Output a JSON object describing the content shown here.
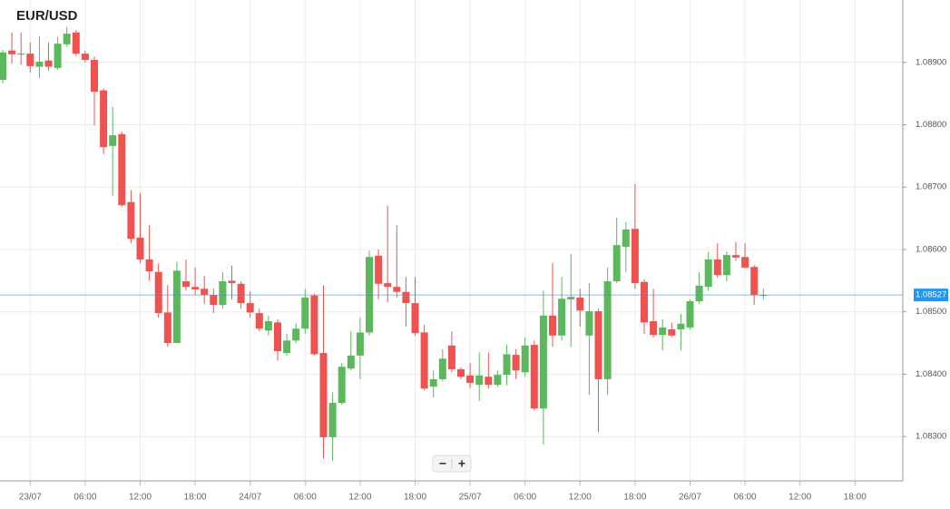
{
  "chart_data": {
    "type": "candlestick",
    "title": "EUR/USD",
    "categories": [
      null,
      null,
      null,
      "23/07",
      null,
      null,
      null,
      null,
      null,
      "06:00",
      null,
      null,
      null,
      null,
      null,
      "12:00",
      null,
      null,
      null,
      null,
      null,
      "18:00",
      null,
      null,
      null,
      null,
      null,
      "24/07",
      null,
      null,
      null,
      null,
      null,
      "06:00",
      null,
      null,
      null,
      null,
      null,
      "12:00",
      null,
      null,
      null,
      null,
      null,
      "18:00",
      null,
      null,
      null,
      null,
      null,
      "25/07",
      null,
      null,
      null,
      null,
      null,
      "06:00",
      null,
      null,
      null,
      null,
      null,
      "12:00",
      null,
      null,
      null,
      null,
      null,
      "18:00",
      null,
      null,
      null,
      null,
      null,
      "26/07",
      null,
      null,
      null,
      null,
      null,
      "06:00",
      null,
      null,
      null,
      null,
      null,
      "12:00",
      null,
      null,
      null,
      null,
      null,
      "18:00",
      null,
      null,
      null
    ],
    "open": [
      1.08872,
      1.08919,
      1.08914,
      1.08914,
      1.08893,
      1.08903,
      1.08891,
      1.08929,
      1.08948,
      1.08914,
      1.08904,
      1.08855,
      1.08766,
      1.08785,
      1.08676,
      1.08619,
      1.08584,
      1.08564,
      1.08499,
      1.0845,
      1.08549,
      1.0854,
      1.08537,
      1.08527,
      1.08511,
      1.0855,
      1.08545,
      1.08514,
      1.08498,
      1.0847,
      1.08483,
      1.08434,
      1.08454,
      1.08473,
      1.08526,
      1.08434,
      1.08299,
      1.08354,
      1.08409,
      1.0843,
      1.08467,
      1.0859,
      1.08546,
      1.0854,
      1.08532,
      1.08514,
      1.08467,
      1.0838,
      1.08392,
      1.08446,
      1.08408,
      1.08398,
      1.08383,
      1.08396,
      1.08383,
      1.08399,
      1.08431,
      1.08403,
      1.08447,
      1.08345,
      1.08494,
      1.08462,
      1.0852,
      1.08523,
      1.08462,
      1.08501,
      1.08392,
      1.08549,
      1.08604,
      1.08633,
      1.08548,
      1.08485,
      1.08463,
      1.08472,
      1.08472,
      1.08475,
      1.08517,
      1.0854,
      1.08584,
      1.08559,
      1.08591,
      1.08588,
      1.08572,
      1.08527,
      null,
      null,
      null,
      null,
      null,
      null,
      null,
      null,
      null,
      null,
      null,
      null,
      null
    ],
    "high": [
      1.0892,
      1.08948,
      1.08948,
      1.08932,
      1.08942,
      1.08932,
      1.08941,
      1.08957,
      1.08952,
      1.08919,
      1.08909,
      1.08858,
      1.08829,
      1.08789,
      1.08695,
      1.0869,
      1.08639,
      1.08578,
      1.08543,
      1.0858,
      1.08584,
      1.08571,
      1.08558,
      1.08537,
      1.08564,
      1.08574,
      1.08549,
      1.08533,
      1.08505,
      1.08494,
      1.08488,
      1.08465,
      1.08482,
      1.08537,
      1.08529,
      1.08542,
      1.08371,
      1.08418,
      1.08469,
      1.08491,
      1.08598,
      1.086,
      1.0867,
      1.08639,
      1.08556,
      1.08556,
      1.08479,
      1.08406,
      1.0844,
      1.08469,
      1.08411,
      1.08418,
      1.08435,
      1.08435,
      1.08406,
      1.08447,
      1.0844,
      1.08459,
      1.08454,
      1.08534,
      1.08578,
      1.08556,
      1.08593,
      1.08537,
      1.08546,
      1.08505,
      1.08571,
      1.08651,
      1.08644,
      1.08705,
      1.08552,
      1.08537,
      1.08488,
      1.08483,
      1.08497,
      1.0852,
      1.08564,
      1.08596,
      1.0861,
      1.08597,
      1.08612,
      1.0861,
      1.08575,
      1.08537,
      null,
      null,
      null,
      null,
      null,
      null,
      null,
      null,
      null,
      null,
      null,
      null,
      null
    ],
    "low": [
      1.08866,
      1.08898,
      1.08896,
      1.08884,
      1.08875,
      1.08887,
      1.08888,
      1.08925,
      1.0891,
      1.089,
      1.08799,
      1.08753,
      1.08686,
      1.08668,
      1.0861,
      1.08578,
      1.0855,
      1.08491,
      1.08444,
      1.0845,
      1.08534,
      1.08527,
      1.08513,
      1.08498,
      1.08505,
      1.0852,
      1.08505,
      1.08491,
      1.08469,
      1.08462,
      1.08422,
      1.0843,
      1.0845,
      1.08465,
      1.0843,
      1.08265,
      1.08261,
      1.08351,
      1.08406,
      1.08392,
      1.08462,
      1.0852,
      1.08515,
      1.08523,
      1.08476,
      1.08462,
      1.08374,
      1.08363,
      1.08389,
      1.08403,
      1.08392,
      1.08377,
      1.08357,
      1.08377,
      1.0838,
      1.08382,
      1.08392,
      1.08396,
      1.08342,
      1.08287,
      1.08444,
      1.08454,
      1.08444,
      1.08476,
      1.08367,
      1.08307,
      1.08367,
      1.08546,
      1.08564,
      1.08537,
      1.08465,
      1.08459,
      1.08438,
      1.08459,
      1.08438,
      1.08472,
      1.08513,
      1.08534,
      1.08555,
      1.08549,
      1.08582,
      1.08569,
      1.08511,
      1.0852,
      null,
      null,
      null,
      null,
      null,
      null,
      null,
      null,
      null,
      null,
      null,
      null,
      null
    ],
    "close": [
      1.08916,
      1.08913,
      1.08913,
      1.08894,
      1.08901,
      1.08893,
      1.0893,
      1.08946,
      1.08914,
      1.08904,
      1.08853,
      1.08764,
      1.08783,
      1.08671,
      1.08617,
      1.08584,
      1.08565,
      1.08498,
      1.0845,
      1.08566,
      1.0854,
      1.08536,
      1.08527,
      1.08511,
      1.08549,
      1.08546,
      1.08514,
      1.08499,
      1.08473,
      1.08485,
      1.08437,
      1.08454,
      1.08473,
      1.08523,
      1.08432,
      1.08299,
      1.08354,
      1.08412,
      1.0843,
      1.08467,
      1.08588,
      1.08545,
      1.0854,
      1.08532,
      1.08514,
      1.08466,
      1.08377,
      1.08392,
      1.08425,
      1.08408,
      1.08396,
      1.08386,
      1.08398,
      1.08383,
      1.08399,
      1.08432,
      1.08406,
      1.08446,
      1.08345,
      1.08494,
      1.08462,
      1.08521,
      1.08524,
      1.08502,
      1.08501,
      1.08392,
      1.08549,
      1.08607,
      1.08632,
      1.08546,
      1.08483,
      1.08463,
      1.08475,
      1.08462,
      1.08481,
      1.08517,
      1.08542,
      1.08584,
      1.08559,
      1.08591,
      1.08587,
      1.08571,
      1.08527,
      1.08527,
      null,
      null,
      null,
      null,
      null,
      null,
      null,
      null,
      null,
      null,
      null,
      null,
      null
    ],
    "up_color": "#5cb85c",
    "down_color": "#ef5350",
    "ylim": [
      1.08229,
      1.09
    ],
    "yticks": [
      {
        "value": 1.083,
        "label": "1.08300"
      },
      {
        "value": 1.084,
        "label": "1.08400"
      },
      {
        "value": 1.085,
        "label": "1.08500"
      },
      {
        "value": 1.086,
        "label": "1.08600"
      },
      {
        "value": 1.087,
        "label": "1.08700"
      },
      {
        "value": 1.088,
        "label": "1.08800"
      },
      {
        "value": 1.089,
        "label": "1.08900"
      }
    ],
    "current_price": {
      "value": 1.08527,
      "label": "1.08527"
    },
    "current_price_color": "#2196f3",
    "grid": true,
    "controls": [
      "−",
      "+"
    ]
  }
}
